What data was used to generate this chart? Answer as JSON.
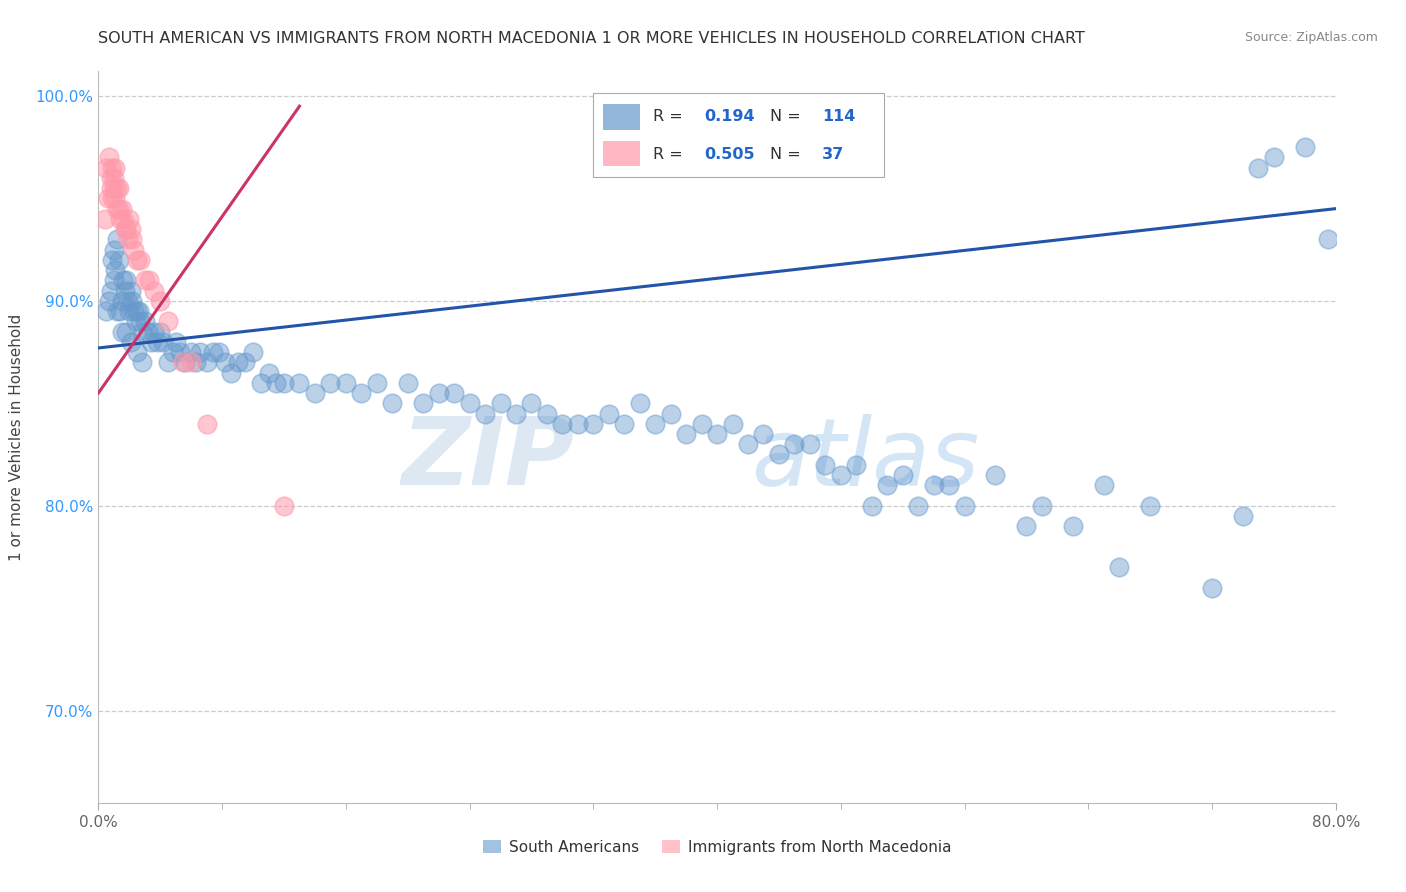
{
  "title": "SOUTH AMERICAN VS IMMIGRANTS FROM NORTH MACEDONIA 1 OR MORE VEHICLES IN HOUSEHOLD CORRELATION CHART",
  "source": "Source: ZipAtlas.com",
  "ylabel": "1 or more Vehicles in Household",
  "watermark_zip": "ZIP",
  "watermark_atlas": "atlas",
  "xlim": [
    0.0,
    0.8
  ],
  "ylim": [
    0.655,
    1.012
  ],
  "yticks": [
    0.7,
    0.8,
    0.9,
    1.0
  ],
  "ytick_labels": [
    "70.0%",
    "80.0%",
    "90.0%",
    "100.0%"
  ],
  "xtick_labels": [
    "0.0%",
    "80.0%"
  ],
  "legend_R1": "0.194",
  "legend_N1": "114",
  "legend_R2": "0.505",
  "legend_N2": "37",
  "blue_scatter_color": "#6699CC",
  "pink_scatter_color": "#FF99AA",
  "blue_line_color": "#2255AA",
  "pink_line_color": "#CC3366",
  "blue_text_color": "#2266CC",
  "tick_color": "#3399FF",
  "grid_color": "#CCCCCC",
  "background_color": "#FFFFFF",
  "sa_x": [
    0.005,
    0.007,
    0.008,
    0.009,
    0.01,
    0.01,
    0.011,
    0.012,
    0.013,
    0.014,
    0.015,
    0.016,
    0.017,
    0.018,
    0.019,
    0.02,
    0.021,
    0.022,
    0.023,
    0.024,
    0.025,
    0.026,
    0.027,
    0.028,
    0.03,
    0.032,
    0.034,
    0.036,
    0.038,
    0.04,
    0.042,
    0.045,
    0.048,
    0.05,
    0.053,
    0.056,
    0.06,
    0.063,
    0.066,
    0.07,
    0.074,
    0.078,
    0.082,
    0.086,
    0.09,
    0.095,
    0.1,
    0.105,
    0.11,
    0.115,
    0.12,
    0.13,
    0.14,
    0.15,
    0.16,
    0.17,
    0.18,
    0.19,
    0.2,
    0.21,
    0.22,
    0.23,
    0.24,
    0.25,
    0.26,
    0.27,
    0.28,
    0.29,
    0.3,
    0.31,
    0.32,
    0.33,
    0.34,
    0.35,
    0.36,
    0.37,
    0.38,
    0.39,
    0.4,
    0.41,
    0.42,
    0.43,
    0.44,
    0.45,
    0.46,
    0.47,
    0.48,
    0.49,
    0.5,
    0.51,
    0.52,
    0.53,
    0.54,
    0.55,
    0.56,
    0.58,
    0.6,
    0.61,
    0.63,
    0.65,
    0.66,
    0.68,
    0.72,
    0.74,
    0.75,
    0.76,
    0.78,
    0.795,
    0.012,
    0.015,
    0.018,
    0.021,
    0.025,
    0.028
  ],
  "sa_y": [
    0.895,
    0.9,
    0.905,
    0.92,
    0.91,
    0.925,
    0.915,
    0.93,
    0.92,
    0.895,
    0.9,
    0.91,
    0.905,
    0.91,
    0.9,
    0.895,
    0.905,
    0.9,
    0.895,
    0.89,
    0.895,
    0.895,
    0.89,
    0.885,
    0.89,
    0.885,
    0.88,
    0.885,
    0.88,
    0.885,
    0.88,
    0.87,
    0.875,
    0.88,
    0.875,
    0.87,
    0.875,
    0.87,
    0.875,
    0.87,
    0.875,
    0.875,
    0.87,
    0.865,
    0.87,
    0.87,
    0.875,
    0.86,
    0.865,
    0.86,
    0.86,
    0.86,
    0.855,
    0.86,
    0.86,
    0.855,
    0.86,
    0.85,
    0.86,
    0.85,
    0.855,
    0.855,
    0.85,
    0.845,
    0.85,
    0.845,
    0.85,
    0.845,
    0.84,
    0.84,
    0.84,
    0.845,
    0.84,
    0.85,
    0.84,
    0.845,
    0.835,
    0.84,
    0.835,
    0.84,
    0.83,
    0.835,
    0.825,
    0.83,
    0.83,
    0.82,
    0.815,
    0.82,
    0.8,
    0.81,
    0.815,
    0.8,
    0.81,
    0.81,
    0.8,
    0.815,
    0.79,
    0.8,
    0.79,
    0.81,
    0.77,
    0.8,
    0.76,
    0.795,
    0.965,
    0.97,
    0.975,
    0.93,
    0.895,
    0.885,
    0.885,
    0.88,
    0.875,
    0.87
  ],
  "mac_x": [
    0.004,
    0.005,
    0.006,
    0.007,
    0.008,
    0.008,
    0.009,
    0.009,
    0.01,
    0.01,
    0.011,
    0.011,
    0.012,
    0.012,
    0.013,
    0.013,
    0.014,
    0.015,
    0.016,
    0.017,
    0.018,
    0.019,
    0.02,
    0.021,
    0.022,
    0.023,
    0.025,
    0.027,
    0.03,
    0.033,
    0.036,
    0.04,
    0.045,
    0.055,
    0.06,
    0.07,
    0.12
  ],
  "mac_y": [
    0.94,
    0.965,
    0.95,
    0.97,
    0.96,
    0.955,
    0.965,
    0.95,
    0.955,
    0.96,
    0.965,
    0.95,
    0.945,
    0.955,
    0.945,
    0.955,
    0.94,
    0.945,
    0.94,
    0.935,
    0.935,
    0.93,
    0.94,
    0.935,
    0.93,
    0.925,
    0.92,
    0.92,
    0.91,
    0.91,
    0.905,
    0.9,
    0.89,
    0.87,
    0.87,
    0.84,
    0.8
  ]
}
